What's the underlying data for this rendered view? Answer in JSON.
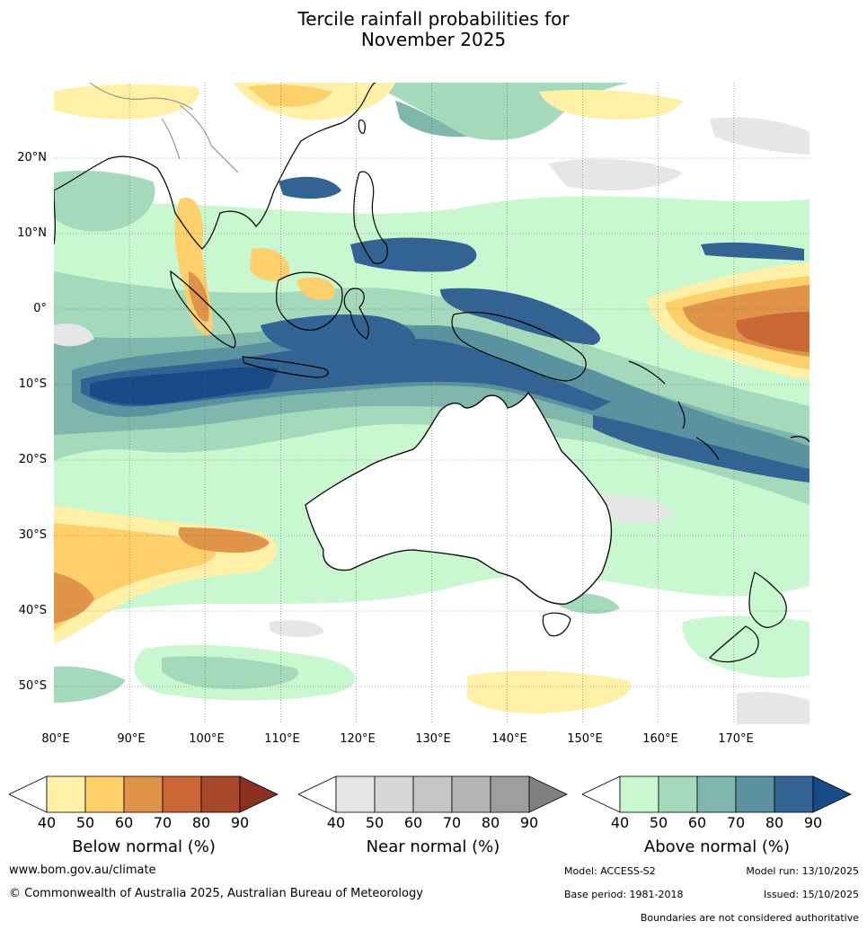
{
  "title_line1": "Tercile rainfall probabilities for",
  "title_line2": "November 2025",
  "lat_labels": [
    "20°N",
    "10°N",
    "0°",
    "10°S",
    "20°S",
    "30°S",
    "40°S",
    "50°S"
  ],
  "lon_labels": [
    "80°E",
    "90°E",
    "100°E",
    "110°E",
    "120°E",
    "130°E",
    "140°E",
    "150°E",
    "160°E",
    "170°E"
  ],
  "colorbars": [
    {
      "title": "Below normal (%)",
      "ticks": [
        "40",
        "50",
        "60",
        "70",
        "80",
        "90"
      ],
      "colors": [
        "#ffffff",
        "#fff0a8",
        "#fed06c",
        "#e0944a",
        "#c96836",
        "#a9472a",
        "#8c3020"
      ]
    },
    {
      "title": "Near normal (%)",
      "ticks": [
        "40",
        "50",
        "60",
        "70",
        "80",
        "90"
      ],
      "colors": [
        "#ffffff",
        "#e6e6e6",
        "#d6d6d6",
        "#c6c6c6",
        "#b3b3b3",
        "#9e9e9e",
        "#808080"
      ]
    },
    {
      "title": "Above normal (%)",
      "ticks": [
        "40",
        "50",
        "60",
        "70",
        "80",
        "90"
      ],
      "colors": [
        "#ffffff",
        "#c9f7cf",
        "#a5d9bb",
        "#7fb7ad",
        "#5b92a0",
        "#336392",
        "#174a86"
      ]
    }
  ],
  "footer": {
    "website": "www.bom.gov.au/climate",
    "copyright": "© Commonwealth of Australia 2025, Australian Bureau of Meteorology",
    "model": "Model: ACCESS-S2",
    "model_run": "Model run: 13/10/2025",
    "base_period": "Base period: 1981-2018",
    "issued": "Issued: 15/10/2025",
    "boundaries": "Boundaries are not considered authoritative"
  }
}
